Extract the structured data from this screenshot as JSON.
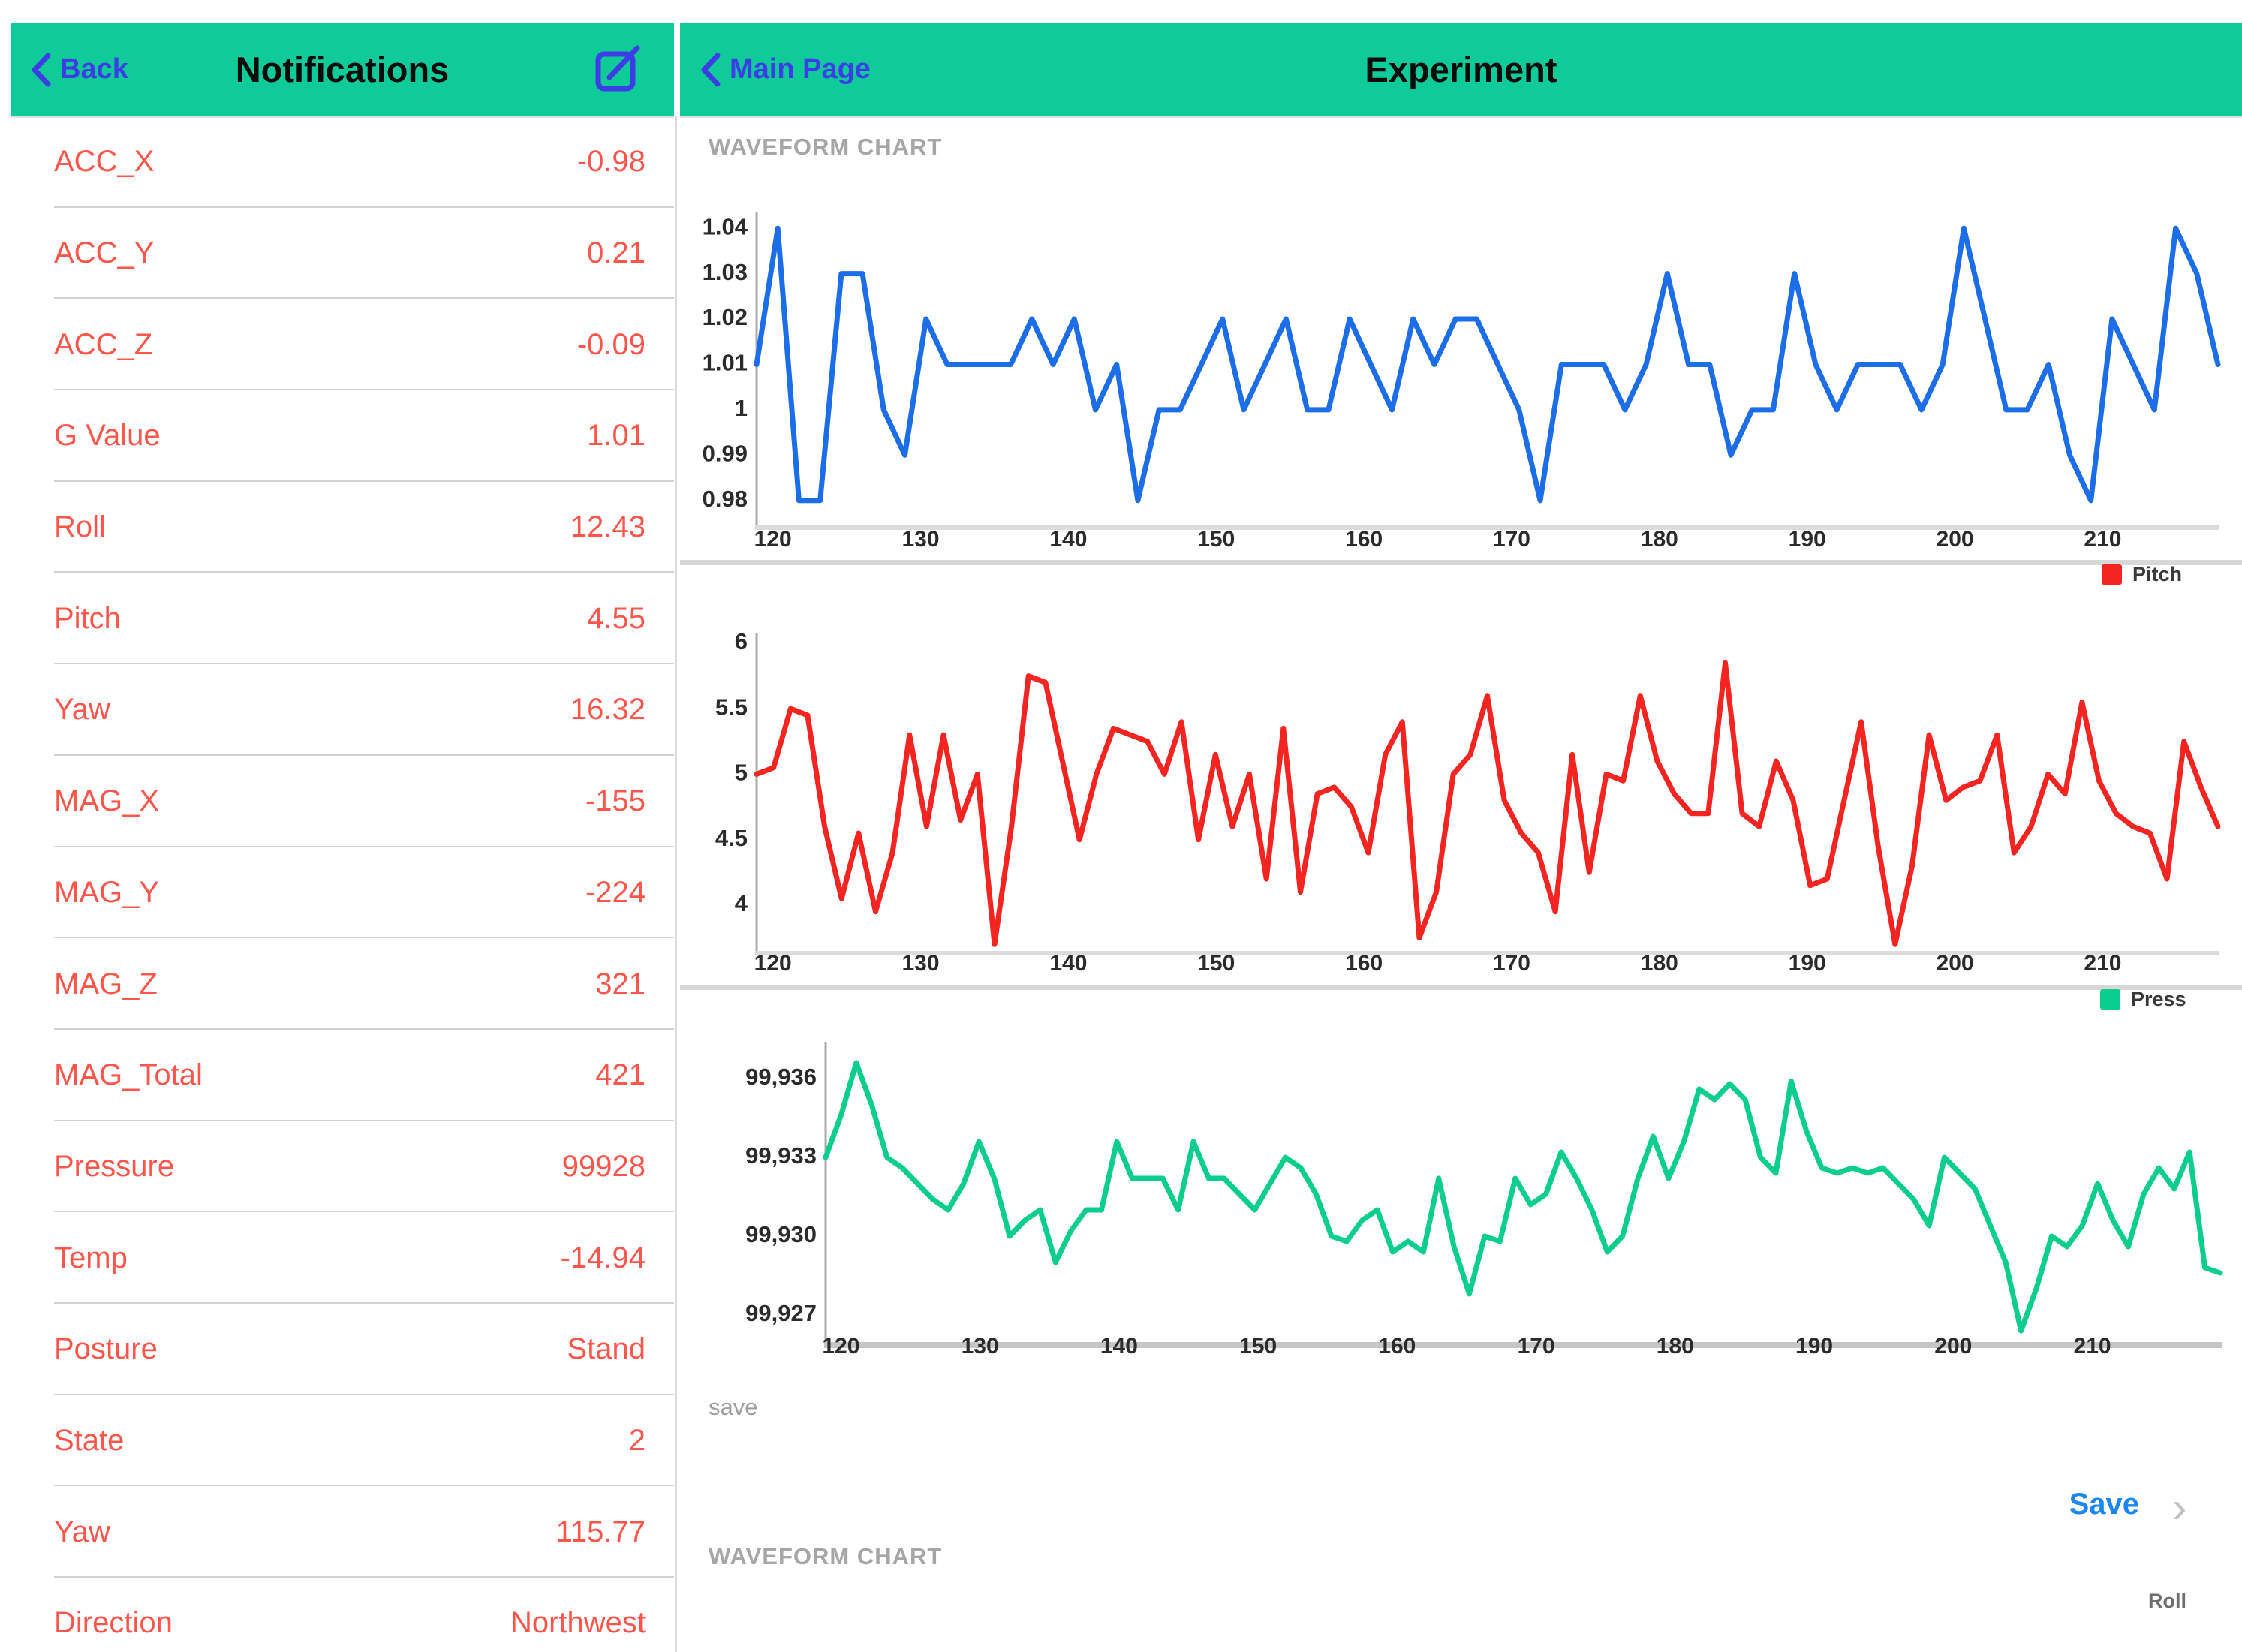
{
  "colors": {
    "header_teal": "#0ECB99",
    "link_blue": "#3D3DE8",
    "list_red": "#FF564C",
    "chart_blue": "#1C6EE8",
    "chart_red": "#F42520",
    "chart_green": "#0BCE8E",
    "save_blue": "#1B87F2"
  },
  "left_panel": {
    "header": {
      "back_label": "Back",
      "title": "Notifications"
    },
    "rows": [
      {
        "label": "ACC_X",
        "value": "-0.98"
      },
      {
        "label": "ACC_Y",
        "value": "0.21"
      },
      {
        "label": "ACC_Z",
        "value": "-0.09"
      },
      {
        "label": "G Value",
        "value": "1.01"
      },
      {
        "label": "Roll",
        "value": "12.43"
      },
      {
        "label": "Pitch",
        "value": "4.55"
      },
      {
        "label": "Yaw",
        "value": "16.32"
      },
      {
        "label": "MAG_X",
        "value": "-155"
      },
      {
        "label": "MAG_Y",
        "value": "-224"
      },
      {
        "label": "MAG_Z",
        "value": "321"
      },
      {
        "label": "MAG_Total",
        "value": "421"
      },
      {
        "label": "Pressure",
        "value": "99928"
      },
      {
        "label": "Temp",
        "value": "-14.94"
      },
      {
        "label": "Posture",
        "value": "Stand"
      },
      {
        "label": "State",
        "value": "2"
      },
      {
        "label": "Yaw",
        "value": "115.77"
      },
      {
        "label": "Direction",
        "value": "Northwest"
      }
    ]
  },
  "right_panel": {
    "header": {
      "back_label": "Main Page",
      "title": "Experiment"
    },
    "section_title": "WAVEFORM CHART",
    "section_title_2": "WAVEFORM CHART",
    "save_section_label": "save",
    "save_button_label": "Save",
    "save_chevron": "›"
  },
  "chart_data": [
    {
      "type": "line",
      "legend": null,
      "color_key": "chart_blue",
      "xlim": [
        118.9,
        217.8
      ],
      "ylim": [
        0.9745,
        1.0435
      ],
      "xticks": [
        120,
        130,
        140,
        150,
        160,
        170,
        180,
        190,
        200,
        210
      ],
      "ytick_values": [
        1.04,
        1.03,
        1.02,
        1.01,
        1,
        0.99,
        0.98
      ],
      "ytick_labels": [
        "1.04",
        "1.03",
        "1.02",
        "1.01",
        "1",
        "0.99",
        "0.98"
      ],
      "values": [
        1.01,
        1.04,
        0.98,
        0.98,
        1.03,
        1.03,
        1.0,
        0.99,
        1.02,
        1.01,
        1.01,
        1.01,
        1.01,
        1.02,
        1.01,
        1.02,
        1.0,
        1.01,
        0.98,
        1.0,
        1.0,
        1.01,
        1.02,
        1.0,
        1.01,
        1.02,
        1.0,
        1.0,
        1.02,
        1.01,
        1.0,
        1.02,
        1.01,
        1.02,
        1.02,
        1.01,
        1.0,
        0.98,
        1.01,
        1.01,
        1.01,
        1.0,
        1.01,
        1.03,
        1.01,
        1.01,
        0.99,
        1.0,
        1.0,
        1.03,
        1.01,
        1.0,
        1.01,
        1.01,
        1.01,
        1.0,
        1.01,
        1.04,
        1.02,
        1.0,
        1.0,
        1.01,
        0.99,
        0.98,
        1.02,
        1.01,
        1.0,
        1.04,
        1.03,
        1.01
      ]
    },
    {
      "type": "line",
      "legend": "Pitch",
      "color_key": "chart_red",
      "xlim": [
        118.9,
        217.8
      ],
      "ylim": [
        3.65,
        6.08
      ],
      "xticks": [
        120,
        130,
        140,
        150,
        160,
        170,
        180,
        190,
        200,
        210
      ],
      "ytick_values": [
        6,
        5.5,
        5,
        4.5,
        4
      ],
      "ytick_labels": [
        "6",
        "5.5",
        "5",
        "4.5",
        "4"
      ],
      "values": [
        5.0,
        5.05,
        5.5,
        5.45,
        4.6,
        4.05,
        4.55,
        3.95,
        4.4,
        5.3,
        4.6,
        5.3,
        4.65,
        5.0,
        3.7,
        4.6,
        5.75,
        5.7,
        5.1,
        4.5,
        5.0,
        5.35,
        5.3,
        5.25,
        5.0,
        5.4,
        4.5,
        5.15,
        4.6,
        5.0,
        4.2,
        5.35,
        4.1,
        4.85,
        4.9,
        4.75,
        4.4,
        5.15,
        5.4,
        3.75,
        4.1,
        5.0,
        5.15,
        5.6,
        4.8,
        4.55,
        4.4,
        3.95,
        5.15,
        4.25,
        5.0,
        4.95,
        5.6,
        5.1,
        4.85,
        4.7,
        4.7,
        5.85,
        4.7,
        4.6,
        5.1,
        4.8,
        4.15,
        4.2,
        4.8,
        5.4,
        4.45,
        3.7,
        4.3,
        5.3,
        4.8,
        4.9,
        4.95,
        5.3,
        4.4,
        4.6,
        5.0,
        4.85,
        5.55,
        4.95,
        4.7,
        4.6,
        4.55,
        4.2,
        5.25,
        4.9,
        4.6
      ]
    },
    {
      "type": "line",
      "legend": "Press",
      "color_key": "chart_green",
      "xlim": [
        118.9,
        219.2
      ],
      "ylim": [
        99925.97,
        99937.4
      ],
      "xticks": [
        120,
        130,
        140,
        150,
        160,
        170,
        180,
        190,
        200,
        210
      ],
      "ytick_values": [
        99936,
        99933,
        99930,
        99927
      ],
      "ytick_labels": [
        "99,936",
        "99,933",
        "99,930",
        "99,927"
      ],
      "values": [
        99933,
        99934.6,
        99936.6,
        99935,
        99933,
        99932.6,
        99932,
        99931.4,
        99931,
        99932,
        99933.6,
        99932.2,
        99930,
        99930.6,
        99931,
        99929,
        99930.2,
        99931,
        99931,
        99933.6,
        99932.2,
        99932.2,
        99932.2,
        99931,
        99933.6,
        99932.2,
        99932.2,
        99931.6,
        99931,
        99932,
        99933,
        99932.6,
        99931.6,
        99930,
        99929.8,
        99930.6,
        99931,
        99929.4,
        99929.8,
        99929.4,
        99932.2,
        99929.6,
        99927.8,
        99930,
        99929.8,
        99932.2,
        99931.2,
        99931.6,
        99933.2,
        99932.2,
        99931,
        99929.4,
        99930,
        99932.2,
        99933.8,
        99932.2,
        99933.6,
        99935.6,
        99935.2,
        99935.8,
        99935.2,
        99933,
        99932.4,
        99935.9,
        99934,
        99932.6,
        99932.4,
        99932.6,
        99932.4,
        99932.6,
        99932,
        99931.4,
        99930.4,
        99933,
        99932.4,
        99931.8,
        99930.4,
        99929,
        99926.4,
        99928,
        99930,
        99929.6,
        99930.4,
        99932,
        99930.6,
        99929.6,
        99931.6,
        99932.6,
        99931.8,
        99933.2,
        99928.8,
        99928.6
      ]
    }
  ],
  "bottom_legend": {
    "roll": "Roll"
  }
}
